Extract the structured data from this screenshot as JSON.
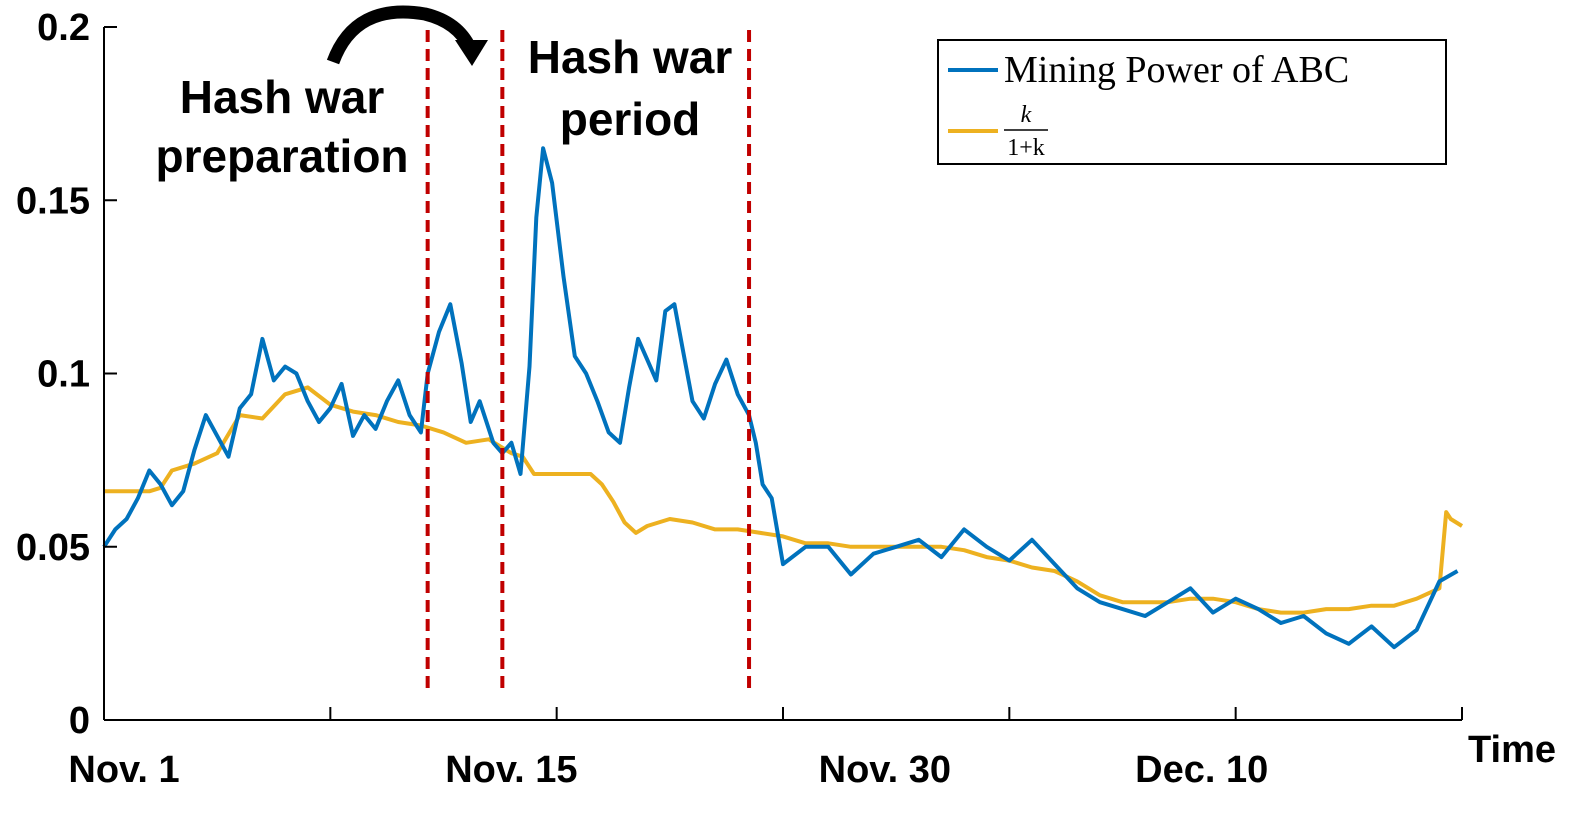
{
  "chart_data": {
    "type": "line",
    "xlabel": "Time",
    "ylabel": "",
    "x_range": [
      0,
      60
    ],
    "ylim": [
      0,
      0.2
    ],
    "y_ticks": [
      0,
      0.05,
      0.1,
      0.15,
      0.2
    ],
    "y_tick_labels": [
      "0",
      "0.05",
      "0.1",
      "0.15",
      "0.2"
    ],
    "x_ticks": [
      0,
      10,
      20,
      30,
      40,
      50,
      60
    ],
    "x_tick_labels": [
      {
        "at": 0,
        "label": "Nov. 1"
      },
      {
        "at": 18,
        "label": "Nov. 15"
      },
      {
        "at": 34.5,
        "label": "Nov. 30"
      },
      {
        "at": 48.5,
        "label": "Dec. 10"
      }
    ],
    "grid": false,
    "legend_position": "top-right",
    "series": [
      {
        "name": "Mining Power of ABC",
        "color": "#0072BD",
        "x": [
          0,
          0.5,
          1,
          1.5,
          2,
          2.5,
          3,
          3.5,
          4,
          4.5,
          5,
          5.5,
          6,
          6.5,
          7,
          7.5,
          8,
          8.5,
          9,
          9.5,
          10,
          10.5,
          11,
          11.5,
          12,
          12.5,
          13,
          13.5,
          14,
          14.3,
          14.8,
          15.3,
          15.8,
          16.2,
          16.6,
          17.2,
          17.6,
          18.0,
          18.4,
          18.8,
          19.1,
          19.4,
          19.8,
          20.3,
          20.8,
          21.3,
          21.8,
          22.3,
          22.8,
          23.2,
          23.6,
          24.0,
          24.4,
          24.8,
          25.2,
          25.6,
          26.0,
          26.5,
          27.0,
          27.5,
          28.0,
          28.5,
          28.8,
          29.1,
          29.5,
          30,
          31,
          32,
          33,
          34,
          35,
          36,
          37,
          38,
          39,
          40,
          41,
          42,
          43,
          44,
          45,
          46,
          47,
          48,
          49,
          50,
          51,
          52,
          53,
          54,
          55,
          56,
          57,
          58,
          59,
          59.8
        ],
        "values": [
          0.05,
          0.055,
          0.058,
          0.064,
          0.072,
          0.068,
          0.062,
          0.066,
          0.078,
          0.088,
          0.082,
          0.076,
          0.09,
          0.094,
          0.11,
          0.098,
          0.102,
          0.1,
          0.092,
          0.086,
          0.09,
          0.097,
          0.082,
          0.088,
          0.084,
          0.092,
          0.098,
          0.088,
          0.083,
          0.1,
          0.112,
          0.12,
          0.103,
          0.086,
          0.092,
          0.08,
          0.077,
          0.08,
          0.071,
          0.102,
          0.145,
          0.165,
          0.155,
          0.128,
          0.105,
          0.1,
          0.092,
          0.083,
          0.08,
          0.096,
          0.11,
          0.104,
          0.098,
          0.118,
          0.12,
          0.106,
          0.092,
          0.087,
          0.097,
          0.104,
          0.094,
          0.088,
          0.08,
          0.068,
          0.064,
          0.045,
          0.05,
          0.05,
          0.042,
          0.048,
          0.05,
          0.052,
          0.047,
          0.055,
          0.05,
          0.046,
          0.052,
          0.045,
          0.038,
          0.034,
          0.032,
          0.03,
          0.034,
          0.038,
          0.031,
          0.035,
          0.032,
          0.028,
          0.03,
          0.025,
          0.022,
          0.027,
          0.021,
          0.026,
          0.04,
          0.043
        ]
      },
      {
        "name": "k/(1+k)",
        "color": "#EDB120",
        "x": [
          0,
          2,
          2.5,
          3,
          4,
          5,
          6,
          7,
          8,
          9,
          10,
          11,
          12,
          13,
          14,
          15,
          16,
          17,
          17.5,
          18,
          18.5,
          19,
          20,
          21,
          21.5,
          22,
          22.5,
          23,
          23.5,
          24,
          25,
          26,
          27,
          28,
          29,
          30,
          31,
          32,
          33,
          34,
          35,
          36,
          37,
          38,
          39,
          40,
          41,
          42,
          43,
          44,
          45,
          46,
          47,
          48,
          49,
          50,
          51,
          52,
          53,
          54,
          55,
          56,
          57,
          58,
          59,
          59.3,
          59.5,
          60
        ],
        "values": [
          0.066,
          0.066,
          0.067,
          0.072,
          0.074,
          0.077,
          0.088,
          0.087,
          0.094,
          0.096,
          0.091,
          0.089,
          0.088,
          0.086,
          0.085,
          0.083,
          0.08,
          0.081,
          0.079,
          0.077,
          0.076,
          0.071,
          0.071,
          0.071,
          0.071,
          0.068,
          0.063,
          0.057,
          0.054,
          0.056,
          0.058,
          0.057,
          0.055,
          0.055,
          0.054,
          0.053,
          0.051,
          0.051,
          0.05,
          0.05,
          0.05,
          0.05,
          0.05,
          0.049,
          0.047,
          0.046,
          0.044,
          0.043,
          0.04,
          0.036,
          0.034,
          0.034,
          0.034,
          0.035,
          0.035,
          0.034,
          0.032,
          0.031,
          0.031,
          0.032,
          0.032,
          0.033,
          0.033,
          0.035,
          0.038,
          0.06,
          0.058,
          0.056
        ]
      }
    ],
    "vertical_markers": [
      {
        "x": 14.3,
        "color": "#C00000",
        "style": "dashed"
      },
      {
        "x": 17.6,
        "color": "#C00000",
        "style": "dashed"
      },
      {
        "x": 28.5,
        "color": "#C00000",
        "style": "dashed"
      }
    ],
    "annotations": [
      {
        "lines": [
          "Hash war",
          "preparation"
        ]
      },
      {
        "lines": [
          "Hash war",
          "period"
        ]
      }
    ],
    "legend": [
      {
        "label": "Mining Power of ABC"
      },
      {
        "label_numerator": "k",
        "label_denominator": "1+k"
      }
    ]
  }
}
